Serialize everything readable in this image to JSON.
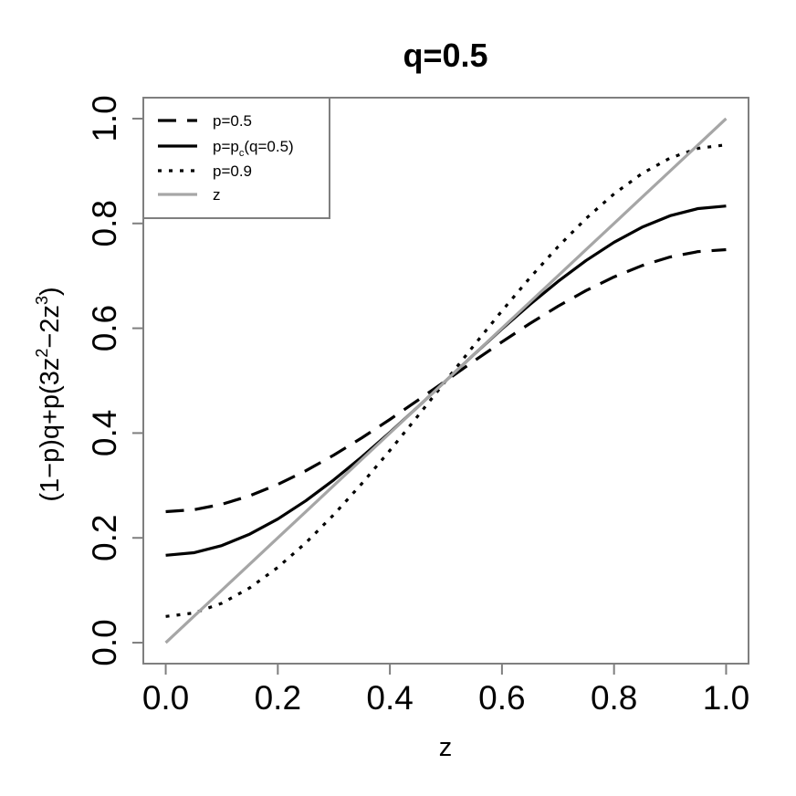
{
  "chart_data": {
    "type": "line",
    "title": "q=0.5",
    "xlabel": "z",
    "ylabel": {
      "prefix": "(1−p)q+p(3z",
      "exp1": "2",
      "mid": "−2z",
      "exp2": "3",
      "suffix": ")"
    },
    "xlim": [
      -0.04,
      1.04
    ],
    "ylim": [
      -0.04,
      1.04
    ],
    "x_ticks": [
      0.0,
      0.2,
      0.4,
      0.6,
      0.8,
      1.0
    ],
    "x_tick_labels": [
      "0.0",
      "0.2",
      "0.4",
      "0.6",
      "0.8",
      "1.0"
    ],
    "y_ticks": [
      0.0,
      0.2,
      0.4,
      0.6,
      0.8,
      1.0
    ],
    "y_tick_labels": [
      "0.0",
      "0.2",
      "0.4",
      "0.6",
      "0.8",
      "1.0"
    ],
    "grid": false,
    "legend_position": "top-left",
    "q": 0.5,
    "x": [
      0.0,
      0.05,
      0.1,
      0.15,
      0.2,
      0.25,
      0.3,
      0.35,
      0.4,
      0.45,
      0.5,
      0.55,
      0.6,
      0.65,
      0.7,
      0.75,
      0.8,
      0.85,
      0.9,
      0.95,
      1.0
    ],
    "series": [
      {
        "key": "p05",
        "dash": "dashed",
        "color": "#000000",
        "values": [
          0.25,
          0.2537,
          0.264,
          0.2804,
          0.302,
          0.3281,
          0.358,
          0.3909,
          0.426,
          0.4626,
          0.5,
          0.5374,
          0.574,
          0.6091,
          0.642,
          0.6719,
          0.698,
          0.7196,
          0.736,
          0.7463,
          0.75
        ]
      },
      {
        "key": "pc",
        "dash": "solid",
        "color": "#000000",
        "values": [
          0.1667,
          0.1716,
          0.1853,
          0.2072,
          0.236,
          0.2708,
          0.3107,
          0.3546,
          0.4013,
          0.4501,
          0.5,
          0.5499,
          0.5987,
          0.6454,
          0.6893,
          0.7292,
          0.764,
          0.7928,
          0.8147,
          0.8284,
          0.8333
        ]
      },
      {
        "key": "p09",
        "dash": "dotted",
        "color": "#000000",
        "values": [
          0.05,
          0.0566,
          0.0752,
          0.1047,
          0.1436,
          0.1906,
          0.2444,
          0.3036,
          0.3668,
          0.4327,
          0.5,
          0.5673,
          0.6332,
          0.6964,
          0.7556,
          0.8094,
          0.8564,
          0.8953,
          0.9248,
          0.9434,
          0.95
        ]
      },
      {
        "key": "z",
        "dash": "solid",
        "color": "#a6a6a6",
        "values": [
          0.0,
          0.05,
          0.1,
          0.15,
          0.2,
          0.25,
          0.3,
          0.35,
          0.4,
          0.45,
          0.5,
          0.55,
          0.6,
          0.65,
          0.7,
          0.75,
          0.8,
          0.85,
          0.9,
          0.95,
          1.0
        ]
      }
    ],
    "legend": {
      "items": [
        {
          "key": "p05",
          "text": "p=0.5"
        },
        {
          "key": "pc",
          "text_prefix": "p=p",
          "text_sub": "c",
          "text_suffix": "(q=0.5)"
        },
        {
          "key": "p09",
          "text": "p=0.9"
        },
        {
          "key": "z",
          "text": "z"
        }
      ]
    }
  }
}
